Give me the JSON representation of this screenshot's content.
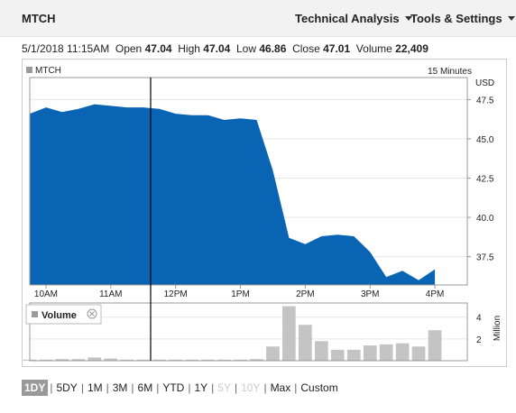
{
  "header": {
    "ticker": "MTCH",
    "menu_technical": "Technical Analysis",
    "menu_tools": "Tools & Settings"
  },
  "quote": {
    "datetime": "5/1/2018 11:15AM",
    "open_label": "Open",
    "open": "47.04",
    "high_label": "High",
    "high": "47.04",
    "low_label": "Low",
    "low": "46.86",
    "close_label": "Close",
    "close": "47.01",
    "volume_label": "Volume",
    "volume": "22,409"
  },
  "chart_data": {
    "type": "area",
    "legend": "MTCH",
    "interval": "15 Minutes",
    "currency": "USD",
    "x_labels": [
      "10AM",
      "11AM",
      "12PM",
      "1PM",
      "2PM",
      "3PM",
      "4PM"
    ],
    "y_ticks": [
      "47.5",
      "45.0",
      "42.5",
      "40.0",
      "37.5"
    ],
    "ylim": [
      35.7,
      48.9
    ],
    "x": [
      "9:45",
      "10:00",
      "10:15",
      "10:30",
      "10:45",
      "11:00",
      "11:15",
      "11:30",
      "11:45",
      "12:00",
      "12:15",
      "12:30",
      "12:45",
      "13:00",
      "13:15",
      "13:30",
      "13:45",
      "14:00",
      "14:15",
      "14:30",
      "14:45",
      "15:00",
      "15:15",
      "15:30",
      "15:45",
      "16:00"
    ],
    "series": [
      {
        "values": [
          46.6,
          47.0,
          46.7,
          46.9,
          47.2,
          47.1,
          47.0,
          47.0,
          46.9,
          46.6,
          46.5,
          46.5,
          46.2,
          46.3,
          46.2,
          43.0,
          38.7,
          38.3,
          38.8,
          38.9,
          38.8,
          37.8,
          36.2,
          36.6,
          36.0,
          36.7
        ]
      }
    ],
    "volume": {
      "label": "Volume",
      "axis_label": "Million",
      "y_ticks": [
        "4",
        "2"
      ],
      "ylim": [
        0,
        5.3
      ],
      "values": [
        0.1,
        0.1,
        0.15,
        0.15,
        0.3,
        0.2,
        0.1,
        0.1,
        0.1,
        0.1,
        0.1,
        0.1,
        0.1,
        0.1,
        0.15,
        1.3,
        5.0,
        3.3,
        1.8,
        1.0,
        1.0,
        1.4,
        1.5,
        1.6,
        1.3,
        2.8
      ]
    }
  },
  "ranges": {
    "items": [
      "1DY",
      "5DY",
      "1M",
      "3M",
      "6M",
      "YTD",
      "1Y",
      "5Y",
      "10Y",
      "Max",
      "Custom"
    ],
    "selected": "1DY",
    "disabled": [
      "5Y",
      "10Y"
    ]
  },
  "colors": {
    "area": "#0a64b4",
    "volume_bar": "#c4c4c4",
    "crosshair": "#000000"
  }
}
